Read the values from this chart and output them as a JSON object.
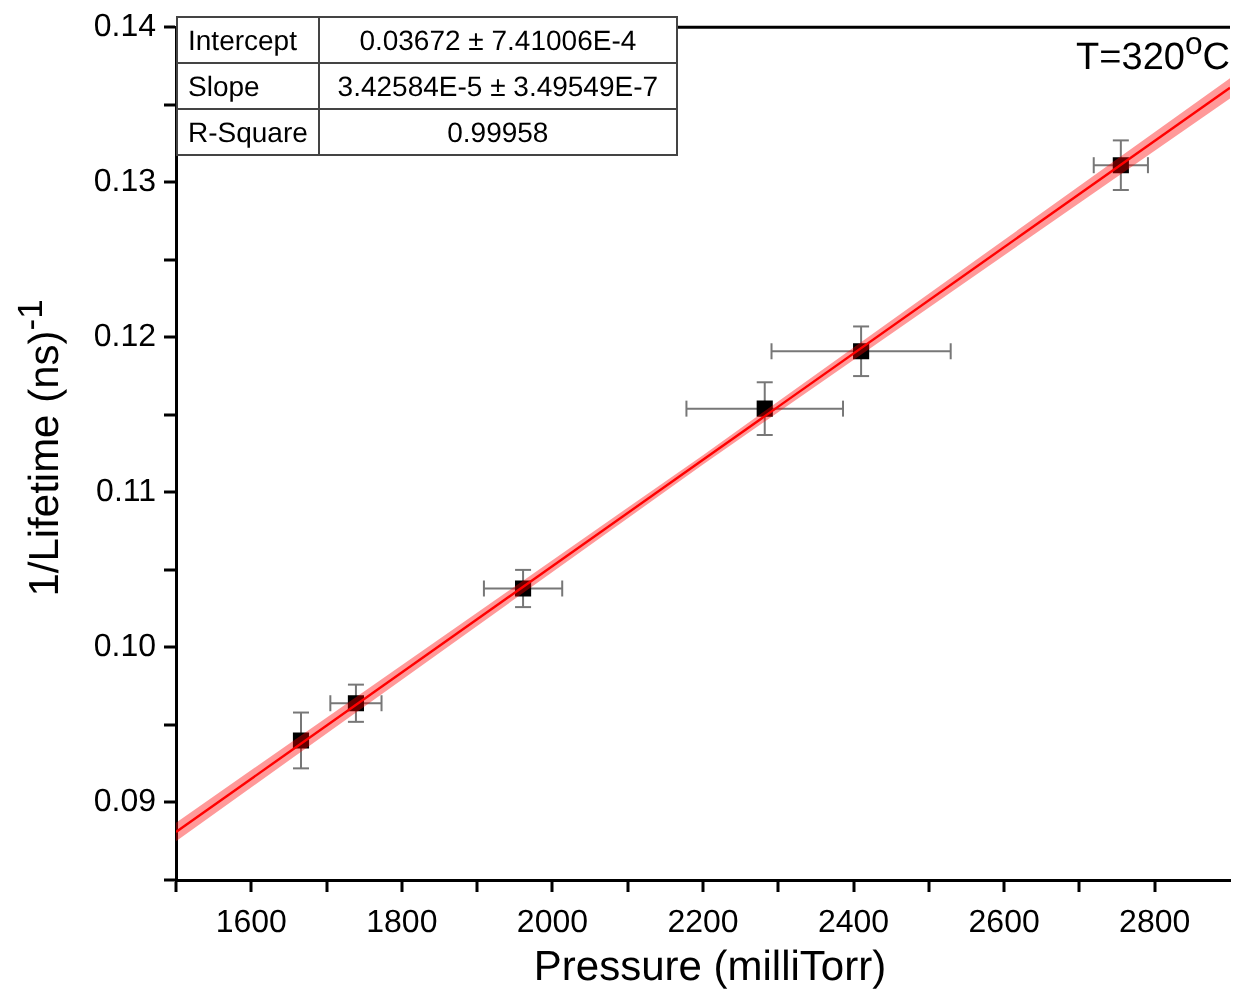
{
  "chart_data": {
    "type": "scatter",
    "xlabel": "Pressure (milliTorr)",
    "ylabel": "1/Lifetime (ns)$^{-1}$",
    "annotations": [
      "Intercept",
      "0.03672 ± 7.41006E-4",
      "Slope",
      "3.42584E-5 ± 3.49549E-7",
      "R-Square",
      "0.99958",
      "T=320$^{o}$C"
    ],
    "xlim": [
      1500,
      2900
    ],
    "ylim": [
      0.085,
      0.14
    ],
    "xticks": [
      {
        "value": 1500,
        "label": null
      },
      1600,
      {
        "value": 1700,
        "label": null
      },
      1800,
      {
        "value": 1900,
        "label": null
      },
      2000,
      {
        "value": 2100,
        "label": null
      },
      2200,
      {
        "value": 2300,
        "label": null
      },
      2400,
      {
        "value": 2500,
        "label": null
      },
      2600,
      {
        "value": 2700,
        "label": null
      },
      2800
    ],
    "yticks": [
      {
        "value": 0.085,
        "label": null
      },
      0.09,
      {
        "value": 0.095,
        "label": null
      },
      {
        "value": 0.1,
        "label": "0.10"
      },
      {
        "value": 0.105,
        "label": null
      },
      0.11,
      {
        "value": 0.115,
        "label": null
      },
      0.12,
      {
        "value": 0.125,
        "label": null
      },
      0.13,
      {
        "value": 0.135,
        "label": null
      },
      0.14
    ],
    "grid": false,
    "legend": false,
    "series": [
      {
        "type": "line",
        "color": "#ff0000",
        "marker": "none",
        "line_style": "solid",
        "x": [
          1500,
          2200,
          2900
        ],
        "values": [
          0.0881,
          0.1121,
          0.1361
        ],
        "lower": [
          0.0875,
          0.1118,
          0.1354
        ],
        "upper": [
          0.0887,
          0.1124,
          0.1367
        ]
      },
      {
        "color": "#000000",
        "marker": "square",
        "x": [
          1666,
          1739,
          1961,
          2282,
          2410,
          2755
        ],
        "values": [
          0.094,
          0.0964,
          0.1038,
          0.1154,
          0.1191,
          0.1311
        ],
        "errors": [
          0.0018,
          0.0012,
          0.0012,
          0.0017,
          0.0016,
          0.0016
        ],
        "xerrors": [
          null,
          34,
          52,
          104,
          119,
          36
        ]
      }
    ]
  }
}
